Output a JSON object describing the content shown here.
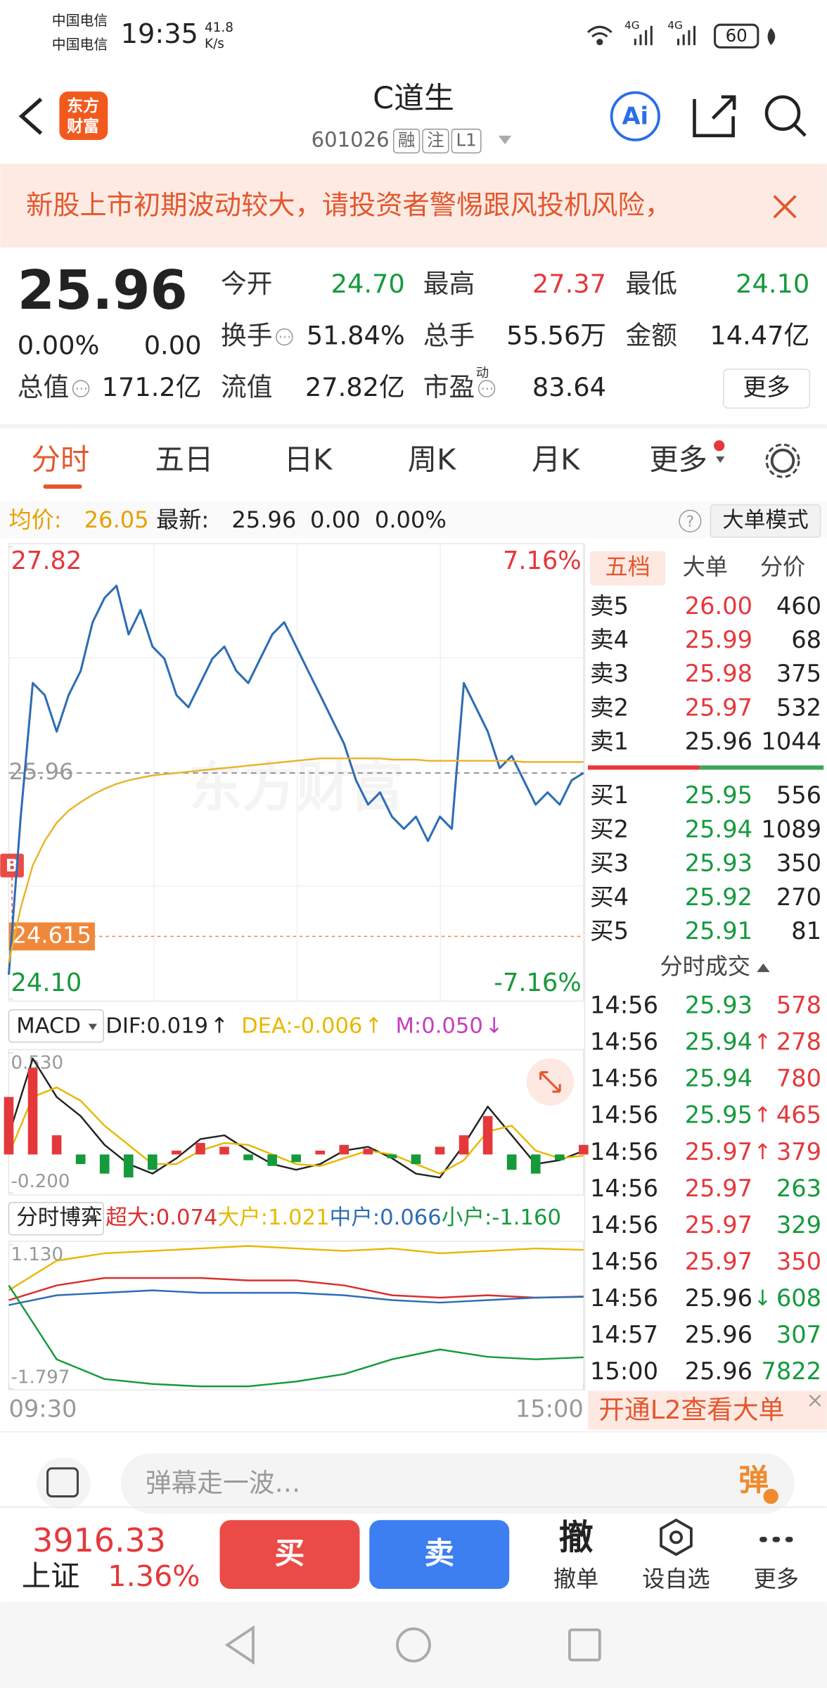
{
  "status_bar": {
    "carrier_1": "中国电信",
    "carrier_2": "中国电信",
    "time": "19:35",
    "speed": "41.8",
    "speed_unit": "K/s",
    "network_1": "4G",
    "network_2": "4G",
    "battery": "60"
  },
  "header": {
    "logo_lines": [
      "东方",
      "财富"
    ],
    "title": "C道生",
    "code": "601026",
    "tags": [
      "融",
      "注",
      "L1"
    ],
    "ai": "Ai"
  },
  "notice": {
    "text": "新股上市初期波动较大，请投资者警惕跟风投机风险，"
  },
  "quote": {
    "price": "25.96",
    "change_pct": "0.00%",
    "change": "0.00",
    "more": "更多",
    "stats": [
      {
        "label": "今开",
        "value": "24.70",
        "color": "#159a3c"
      },
      {
        "label": "最高",
        "value": "27.37",
        "color": "#e5383b"
      },
      {
        "label": "最低",
        "value": "24.10",
        "color": "#159a3c"
      },
      {
        "label": "换手",
        "value": "51.84%",
        "color": "#222222"
      },
      {
        "label": "总手",
        "value": "55.56万",
        "color": "#222222"
      },
      {
        "label": "金额",
        "value": "14.47亿",
        "color": "#222222"
      },
      {
        "label": "总值",
        "value": "171.2亿",
        "color": "#222222"
      },
      {
        "label": "流值",
        "value": "27.82亿",
        "color": "#222222"
      },
      {
        "label": "市盈",
        "sup": "动",
        "value": "83.64",
        "color": "#222222"
      }
    ]
  },
  "tabs": [
    "分时",
    "五日",
    "日K",
    "周K",
    "月K",
    "更多"
  ],
  "info_bar": {
    "avg_label": "均价:",
    "avg": "26.05",
    "latest_label": "最新:",
    "latest": "25.96",
    "change": "0.00",
    "change_pct": "0.00%",
    "help": "?",
    "mode": "大单模式"
  },
  "watermark": "东方财富",
  "chart_data": [
    {
      "type": "line",
      "xlim": [
        0,
        240
      ],
      "ylim": [
        24.1,
        27.82
      ],
      "yticks": [
        27.82,
        {
          "value": 24.1,
          "label": "24.10"
        }
      ],
      "y2lim": [
        -7.16,
        7.16
      ],
      "y2ticks": [
        {
          "value": 7.16,
          "label": "7.16%"
        },
        {
          "value": -7.16,
          "label": "-7.16%"
        }
      ],
      "up_color": "#e5383b",
      "down_color": "#159a3c",
      "reference": 25.96,
      "marker": 24.615,
      "marker_tag": "B",
      "x": [
        0,
        5,
        10,
        15,
        20,
        25,
        30,
        35,
        40,
        45,
        50,
        55,
        60,
        65,
        70,
        75,
        80,
        85,
        90,
        95,
        100,
        105,
        110,
        115,
        120,
        125,
        130,
        135,
        140,
        145,
        150,
        155,
        160,
        165,
        170,
        175,
        180,
        185,
        190,
        195,
        200,
        205,
        210,
        215,
        220,
        225,
        230,
        235,
        240
      ],
      "series": [
        {
          "name": "价格",
          "color": "#2e6db4",
          "values": [
            24.3,
            25.6,
            26.7,
            26.6,
            26.3,
            26.6,
            26.8,
            27.2,
            27.4,
            27.5,
            27.1,
            27.3,
            27.0,
            26.9,
            26.6,
            26.5,
            26.7,
            26.9,
            27.0,
            26.8,
            26.7,
            26.9,
            27.1,
            27.2,
            27.0,
            26.8,
            26.6,
            26.4,
            26.2,
            25.9,
            25.7,
            25.8,
            25.6,
            25.5,
            25.6,
            25.4,
            25.6,
            25.5,
            26.7,
            26.5,
            26.3,
            26.0,
            26.1,
            25.9,
            25.7,
            25.8,
            25.7,
            25.9,
            25.96
          ]
        },
        {
          "name": "均价",
          "color": "#e9b32a",
          "values": [
            24.4,
            24.85,
            25.2,
            25.4,
            25.55,
            25.65,
            25.72,
            25.78,
            25.83,
            25.87,
            25.9,
            25.92,
            25.94,
            25.95,
            25.96,
            25.97,
            25.98,
            25.99,
            26.0,
            26.01,
            26.02,
            26.03,
            26.04,
            26.05,
            26.06,
            26.07,
            26.08,
            26.08,
            26.08,
            26.08,
            26.08,
            26.08,
            26.07,
            26.07,
            26.07,
            26.06,
            26.06,
            26.06,
            26.06,
            26.06,
            26.06,
            26.06,
            26.06,
            26.05,
            26.05,
            26.05,
            26.05,
            26.05,
            26.05
          ]
        }
      ]
    },
    {
      "type": "macd",
      "selector": "MACD",
      "xlim": [
        0,
        240
      ],
      "ylim": [
        -0.2,
        0.53
      ],
      "yticks": [
        {
          "value": 0.53,
          "label": "0.530"
        },
        {
          "value": -0.2,
          "label": "-0.200"
        }
      ],
      "up_color": "#e5383b",
      "down_color": "#159a3c",
      "x": [
        0,
        10,
        20,
        30,
        40,
        50,
        60,
        70,
        80,
        90,
        100,
        110,
        120,
        130,
        140,
        150,
        160,
        170,
        180,
        190,
        200,
        210,
        220,
        230,
        240
      ],
      "series": [
        {
          "name": "DIF:0.019",
          "trend": "↑",
          "color": "#222222",
          "values": [
            0.1,
            0.5,
            0.3,
            0.2,
            0.05,
            -0.05,
            -0.1,
            -0.02,
            0.08,
            0.1,
            0.02,
            -0.05,
            -0.08,
            -0.05,
            0.02,
            0.04,
            -0.02,
            -0.1,
            -0.12,
            0.05,
            0.25,
            0.1,
            -0.05,
            -0.03,
            0.019
          ]
        },
        {
          "name": "DEA:-0.006",
          "trend": "↑",
          "color": "#e8b800",
          "values": [
            0.0,
            0.3,
            0.35,
            0.28,
            0.15,
            0.05,
            -0.05,
            -0.05,
            0.02,
            0.06,
            0.05,
            0.0,
            -0.05,
            -0.06,
            -0.02,
            0.02,
            0.0,
            -0.05,
            -0.1,
            -0.03,
            0.12,
            0.15,
            0.02,
            -0.02,
            -0.006
          ]
        },
        {
          "name": "M:0.050",
          "trend": "↓",
          "color": "#c23fc2",
          "type": "bar",
          "values": [
            0.3,
            0.45,
            0.1,
            -0.05,
            -0.1,
            -0.12,
            -0.08,
            0.02,
            0.06,
            0.04,
            -0.03,
            -0.06,
            -0.04,
            0.02,
            0.05,
            0.03,
            -0.02,
            -0.05,
            0.04,
            0.1,
            0.2,
            -0.08,
            -0.1,
            -0.03,
            0.05
          ]
        }
      ]
    },
    {
      "type": "line",
      "selector": "分时博弈",
      "xlim": [
        0,
        240
      ],
      "ylim": [
        -1.797,
        1.13
      ],
      "yticks": [
        {
          "value": 1.13,
          "label": "1.130"
        },
        -1.797
      ],
      "xticks": [
        {
          "value": 0,
          "label": "09:30"
        },
        {
          "value": 240,
          "label": "15:00"
        }
      ],
      "x": [
        0,
        20,
        40,
        60,
        80,
        100,
        120,
        140,
        160,
        180,
        200,
        220,
        240
      ],
      "series": [
        {
          "name": "超大:0.074",
          "color": "#d93030",
          "values": [
            0,
            0.3,
            0.45,
            0.45,
            0.45,
            0.4,
            0.4,
            0.3,
            0.1,
            0.05,
            0.1,
            0.05,
            0.074
          ]
        },
        {
          "name": "大户:1.021",
          "color": "#e8b800",
          "values": [
            0.2,
            0.8,
            0.95,
            1.0,
            1.05,
            1.1,
            1.05,
            1.0,
            1.05,
            0.95,
            1.0,
            1.05,
            1.021
          ]
        },
        {
          "name": "中户:0.066",
          "color": "#2e6db4",
          "values": [
            -0.1,
            0.1,
            0.15,
            0.2,
            0.15,
            0.15,
            0.15,
            0.1,
            0.0,
            -0.05,
            0.0,
            0.05,
            0.066
          ]
        },
        {
          "name": "小户:-1.160",
          "color": "#159a3c",
          "values": [
            0.3,
            -1.2,
            -1.6,
            -1.7,
            -1.75,
            -1.75,
            -1.65,
            -1.5,
            -1.2,
            -1.0,
            -1.15,
            -1.2,
            -1.16
          ]
        }
      ]
    }
  ],
  "order_book": {
    "tabs": [
      "五档",
      "大单",
      "分价"
    ],
    "asks": [
      {
        "label": "卖5",
        "price": "26.00",
        "volume": "460"
      },
      {
        "label": "卖4",
        "price": "25.99",
        "volume": "68"
      },
      {
        "label": "卖3",
        "price": "25.98",
        "volume": "375"
      },
      {
        "label": "卖2",
        "price": "25.97",
        "volume": "532"
      },
      {
        "label": "卖1",
        "price": "25.96",
        "volume": "1044"
      }
    ],
    "bids": [
      {
        "label": "买1",
        "price": "25.95",
        "volume": "556"
      },
      {
        "label": "买2",
        "price": "25.94",
        "volume": "1089"
      },
      {
        "label": "买3",
        "price": "25.93",
        "volume": "350"
      },
      {
        "label": "买4",
        "price": "25.92",
        "volume": "270"
      },
      {
        "label": "买5",
        "price": "25.91",
        "volume": "81"
      }
    ]
  },
  "trades": {
    "title": "分时成交",
    "rows": [
      {
        "time": "14:56",
        "price": "25.93",
        "volume": "578",
        "volume_color": "#e5383b"
      },
      {
        "time": "14:56",
        "price": "25.94",
        "flag": "↑",
        "volume": "278",
        "volume_color": "#e5383b"
      },
      {
        "time": "14:56",
        "price": "25.94",
        "volume": "780",
        "volume_color": "#e5383b"
      },
      {
        "time": "14:56",
        "price": "25.95",
        "flag": "↑",
        "volume": "465",
        "volume_color": "#e5383b"
      },
      {
        "time": "14:56",
        "price": "25.97",
        "flag": "↑",
        "volume": "379",
        "volume_color": "#e5383b"
      },
      {
        "time": "14:56",
        "price": "25.97",
        "volume": "263",
        "volume_color": "#159a3c"
      },
      {
        "time": "14:56",
        "price": "25.97",
        "volume": "329",
        "volume_color": "#159a3c"
      },
      {
        "time": "14:56",
        "price": "25.97",
        "volume": "350",
        "volume_color": "#e5383b"
      },
      {
        "time": "14:56",
        "price": "25.96",
        "flag": "↓",
        "volume": "608",
        "volume_color": "#159a3c"
      },
      {
        "time": "14:57",
        "price": "25.96",
        "volume": "307",
        "volume_color": "#159a3c"
      },
      {
        "time": "15:00",
        "price": "25.96",
        "volume": "7822",
        "volume_color": "#159a3c"
      }
    ]
  },
  "banner": "开通L2查看大单",
  "danmaku": {
    "placeholder": "弹幕走一波…",
    "button": "弹"
  },
  "bottom_bar": {
    "index_value": "3916.33",
    "index_name": "上证",
    "index_change": "1.36%",
    "buy": "买",
    "sell": "卖",
    "cancel_icon": "撤",
    "cancel": "撤单",
    "watch": "设自选",
    "more": "更多"
  }
}
